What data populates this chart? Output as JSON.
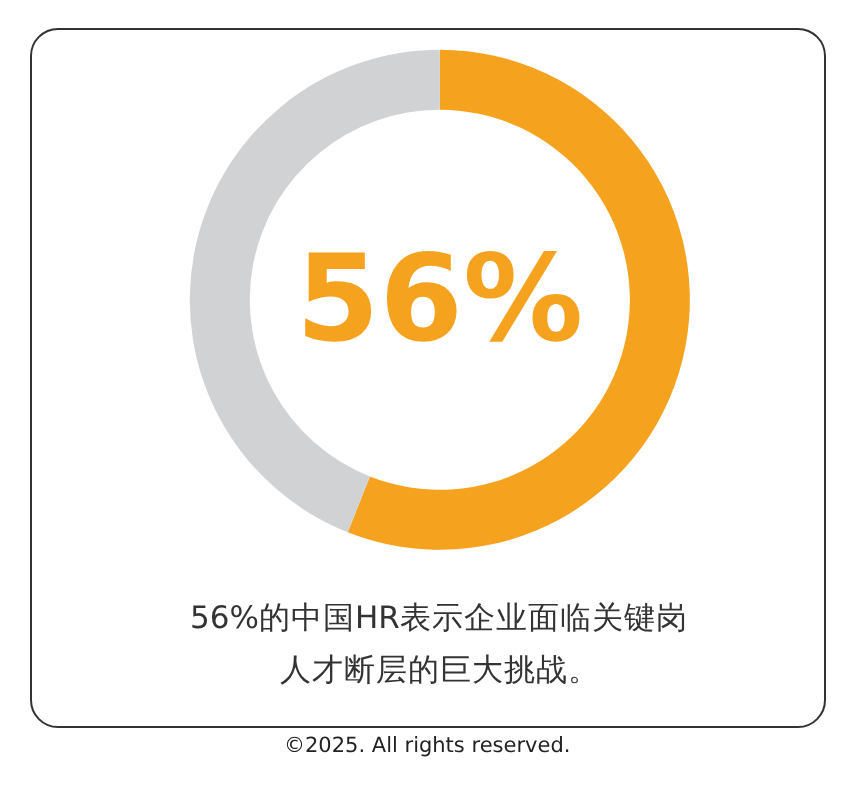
{
  "chart_data": {
    "type": "donut",
    "categories": [
      null,
      null
    ],
    "values": [
      56,
      44
    ],
    "colors": [
      "#f5a31f",
      "#d1d2d4"
    ],
    "annotations": [
      "56%",
      "56%的中国HR表示企业面临关键岗",
      "人才断层的巨大挑战。",
      "©2025. All rights reserved."
    ]
  }
}
